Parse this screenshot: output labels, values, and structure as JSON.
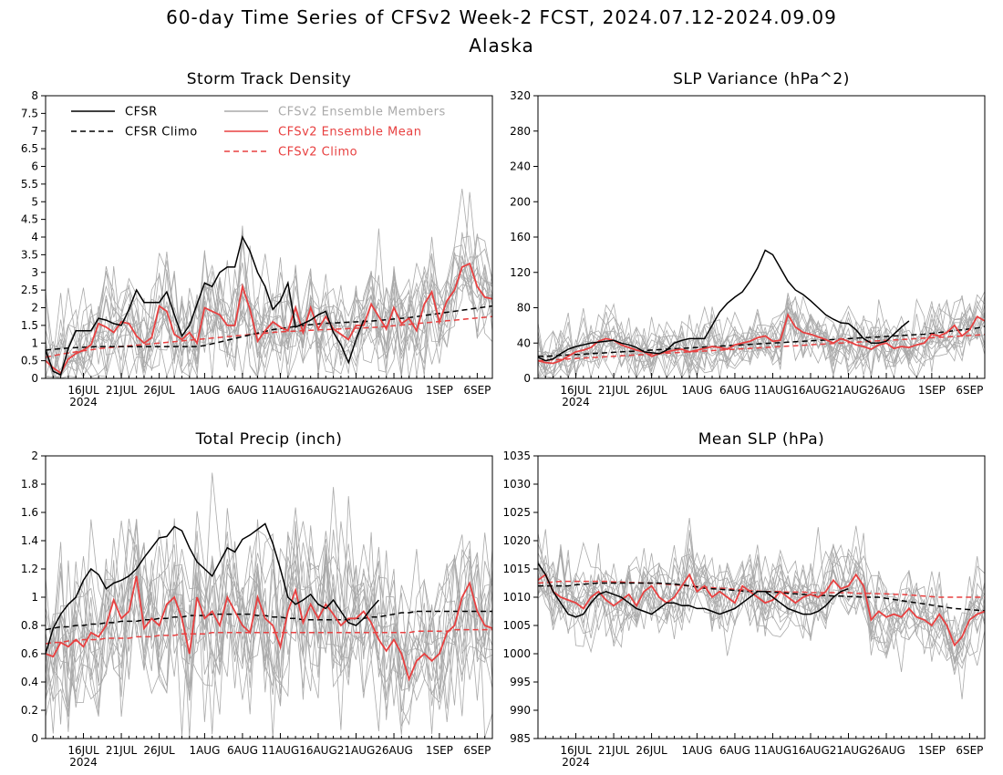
{
  "page": {
    "title_line1": "60-day Time Series of CFSv2 Week-2 FCST, 2024.07.12-2024.09.09",
    "title_line2": "Alaska"
  },
  "colors": {
    "cfsr": "#000000",
    "ens_members": "#aaaaaa",
    "ens_mean": "#e84040",
    "cfsv2_climo": "#e84040",
    "legend_members_text": "#aaaaaa",
    "legend_red_text": "#e84040"
  },
  "legend": {
    "cfsr": "CFSR",
    "cfsr_climo": "CFSR Climo",
    "members": "CFSv2 Ensemble Members",
    "mean": "CFSv2 Ensemble Mean",
    "cfsv2_climo": "CFSv2 Climo"
  },
  "x_axis": {
    "day_count": 60,
    "tick_days": [
      5,
      10,
      15,
      21,
      26,
      31,
      36,
      41,
      46,
      52,
      57
    ],
    "tick_labels": [
      "16JUL",
      "21JUL",
      "26JUL",
      "1AUG",
      "6AUG",
      "11AUG",
      "16AUG",
      "21AUG",
      "26AUG",
      "1SEP",
      "6SEP"
    ],
    "year_label": "2024"
  },
  "chart_data": [
    {
      "type": "line",
      "title": "Storm Track Density",
      "ylim": [
        0,
        8
      ],
      "yticks": [
        "0",
        "0.5",
        "1",
        "1.5",
        "2",
        "2.5",
        "3",
        "3.5",
        "4",
        "4.5",
        "5",
        "5.5",
        "6",
        "6.5",
        "7",
        "7.5",
        "8"
      ],
      "legend": true,
      "cfsr": [
        0.8,
        0.2,
        0.1,
        0.85,
        1.35,
        1.35,
        1.35,
        1.7,
        1.65,
        1.55,
        1.5,
        1.95,
        2.5,
        2.15,
        2.15,
        2.15,
        2.45,
        1.8,
        1.2,
        1.5,
        2.1,
        2.7,
        2.6,
        3,
        3.15,
        3.15,
        4,
        3.6,
        3,
        2.6,
        1.95,
        2.2,
        2.7,
        1.45,
        1.55,
        1.65,
        1.8,
        1.9,
        1.3,
        0.95,
        0.45,
        1.1,
        1.65,
        null,
        null,
        null,
        null,
        null,
        null,
        null,
        null,
        null,
        null,
        null,
        null,
        null,
        null,
        null,
        null,
        null
      ],
      "cfsr_climo": [
        0.8,
        0.82,
        0.84,
        0.86,
        0.87,
        0.88,
        0.89,
        0.9,
        0.9,
        0.9,
        0.9,
        0.9,
        0.9,
        0.9,
        0.9,
        0.9,
        0.9,
        0.9,
        0.9,
        0.9,
        0.9,
        0.93,
        0.98,
        1.03,
        1.08,
        1.13,
        1.18,
        1.23,
        1.28,
        1.33,
        1.38,
        1.41,
        1.44,
        1.47,
        1.5,
        1.52,
        1.54,
        1.56,
        1.57,
        1.58,
        1.59,
        1.6,
        1.61,
        1.62,
        1.64,
        1.66,
        1.68,
        1.7,
        1.72,
        1.75,
        1.78,
        1.81,
        1.84,
        1.87,
        1.9,
        1.93,
        1.96,
        1.99,
        2.02,
        2.05
      ],
      "ens_mean": [
        0.5,
        0.3,
        0.15,
        0.55,
        0.7,
        0.8,
        0.95,
        1.55,
        1.45,
        1.3,
        1.6,
        1.55,
        1.2,
        1.0,
        1.15,
        2.05,
        1.9,
        1.25,
        1.1,
        1.3,
        1.0,
        2.0,
        1.9,
        1.8,
        1.5,
        1.5,
        2.6,
        1.95,
        1.05,
        1.35,
        1.6,
        1.45,
        1.35,
        2.0,
        1.3,
        2.0,
        1.4,
        1.75,
        1.4,
        1.25,
        1.1,
        1.5,
        1.5,
        2.1,
        1.75,
        1.4,
        2.0,
        1.55,
        1.7,
        1.35,
        2.1,
        2.45,
        1.6,
        2.2,
        2.5,
        3.15,
        3.25,
        2.6,
        2.3,
        2.25
      ],
      "cfsv2_climo": [
        0.6,
        0.64,
        0.68,
        0.72,
        0.75,
        0.78,
        0.81,
        0.84,
        0.86,
        0.88,
        0.9,
        0.92,
        0.94,
        0.96,
        0.98,
        1.0,
        1.02,
        1.04,
        1.06,
        1.08,
        1.1,
        1.12,
        1.14,
        1.16,
        1.18,
        1.2,
        1.22,
        1.24,
        1.26,
        1.28,
        1.3,
        1.32,
        1.33,
        1.34,
        1.35,
        1.36,
        1.37,
        1.38,
        1.39,
        1.4,
        1.41,
        1.42,
        1.43,
        1.44,
        1.45,
        1.47,
        1.49,
        1.51,
        1.53,
        1.55,
        1.57,
        1.59,
        1.61,
        1.63,
        1.65,
        1.67,
        1.69,
        1.71,
        1.73,
        1.75
      ],
      "members_spread": 0.8,
      "member_count": 16
    },
    {
      "type": "line",
      "title": "SLP Variance (hPa^2)",
      "ylim": [
        0,
        320
      ],
      "yticks": [
        "0",
        "40",
        "80",
        "120",
        "160",
        "200",
        "240",
        "280",
        "320"
      ],
      "legend": false,
      "cfsr": [
        24,
        20,
        22,
        28,
        33,
        36,
        38,
        40,
        41,
        42,
        43,
        40,
        38,
        35,
        30,
        29,
        28,
        32,
        40,
        43,
        45,
        45,
        45,
        60,
        75,
        85,
        92,
        98,
        110,
        125,
        145,
        140,
        125,
        110,
        100,
        95,
        88,
        80,
        72,
        67,
        63,
        62,
        55,
        45,
        40,
        40,
        42,
        50,
        58,
        65,
        null,
        null,
        null,
        null,
        null,
        null,
        null,
        null,
        null,
        null
      ],
      "cfsr_climo": [
        25,
        25,
        25.5,
        26,
        26.5,
        27,
        27.5,
        28,
        28.5,
        29,
        29.5,
        30,
        30.5,
        31,
        31.5,
        32,
        32.5,
        33,
        33.5,
        34,
        34.5,
        35,
        35.5,
        36,
        36.5,
        37,
        37.5,
        38,
        38.5,
        39,
        39.5,
        40,
        40.5,
        41,
        41.5,
        42,
        42.5,
        43,
        43.5,
        44,
        44.5,
        45,
        45.5,
        46,
        46.5,
        47,
        47.5,
        48,
        48.5,
        49,
        49.5,
        50,
        51,
        52,
        53,
        54,
        55,
        56,
        57,
        59
      ],
      "ens_mean": [
        20,
        18,
        17,
        20,
        25,
        30,
        32,
        35,
        42,
        45,
        43,
        38,
        35,
        32,
        30,
        25,
        28,
        30,
        32,
        33,
        30,
        32,
        34,
        36,
        35,
        33,
        38,
        40,
        42,
        46,
        48,
        42,
        43,
        72,
        58,
        52,
        50,
        47,
        44,
        40,
        45,
        42,
        38,
        36,
        33,
        38,
        40,
        34,
        36,
        35,
        38,
        40,
        50,
        48,
        52,
        60,
        48,
        55,
        70,
        65
      ],
      "cfsv2_climo": [
        20,
        20.5,
        21,
        21.5,
        22,
        22.5,
        23,
        23.5,
        24,
        24.5,
        25,
        25.5,
        26,
        26.5,
        27,
        27.5,
        28,
        28.5,
        29,
        29.5,
        30,
        30.5,
        31,
        31.5,
        32,
        32.5,
        33,
        33.5,
        34,
        34.5,
        35,
        35.5,
        36,
        36.5,
        37,
        37.5,
        38,
        38.5,
        39,
        39.5,
        40,
        40.5,
        41,
        41.5,
        42,
        42.5,
        43,
        43.5,
        44,
        44.5,
        45,
        45.5,
        46,
        46.5,
        47,
        47.5,
        48,
        48.5,
        49,
        50
      ],
      "members_spread": 18,
      "member_count": 16
    },
    {
      "type": "line",
      "title": "Total Precip (inch)",
      "ylim": [
        0,
        2
      ],
      "yticks": [
        "0",
        "0.2",
        "0.4",
        "0.6",
        "0.8",
        "1",
        "1.2",
        "1.4",
        "1.6",
        "1.8",
        "2"
      ],
      "legend": false,
      "cfsr": [
        0.6,
        0.78,
        0.88,
        0.95,
        1.0,
        1.12,
        1.2,
        1.16,
        1.06,
        1.1,
        1.12,
        1.15,
        1.2,
        1.28,
        1.35,
        1.42,
        1.43,
        1.5,
        1.47,
        1.35,
        1.25,
        1.2,
        1.15,
        1.25,
        1.35,
        1.32,
        1.41,
        1.44,
        1.48,
        1.52,
        1.38,
        1.2,
        1.0,
        0.95,
        0.98,
        1.02,
        0.95,
        0.92,
        0.98,
        0.9,
        0.82,
        0.8,
        0.85,
        0.92,
        0.98,
        null,
        null,
        null,
        null,
        null,
        null,
        null,
        null,
        null,
        null,
        null,
        null,
        null,
        null,
        null
      ],
      "cfsr_climo": [
        0.77,
        0.78,
        0.79,
        0.79,
        0.8,
        0.8,
        0.81,
        0.81,
        0.82,
        0.82,
        0.83,
        0.83,
        0.83,
        0.84,
        0.84,
        0.85,
        0.85,
        0.86,
        0.86,
        0.87,
        0.87,
        0.87,
        0.88,
        0.88,
        0.88,
        0.88,
        0.88,
        0.88,
        0.87,
        0.87,
        0.86,
        0.86,
        0.85,
        0.85,
        0.84,
        0.84,
        0.84,
        0.84,
        0.84,
        0.84,
        0.84,
        0.85,
        0.85,
        0.86,
        0.86,
        0.87,
        0.88,
        0.89,
        0.89,
        0.9,
        0.9,
        0.9,
        0.9,
        0.9,
        0.9,
        0.9,
        0.9,
        0.9,
        0.9,
        0.9
      ],
      "ens_mean": [
        0.6,
        0.58,
        0.68,
        0.65,
        0.7,
        0.65,
        0.75,
        0.72,
        0.8,
        0.98,
        0.85,
        0.9,
        1.15,
        0.78,
        0.85,
        0.8,
        0.95,
        1.0,
        0.85,
        0.6,
        1.0,
        0.85,
        0.9,
        0.8,
        1.0,
        0.9,
        0.8,
        0.75,
        1.0,
        0.85,
        0.8,
        0.65,
        0.9,
        1.05,
        0.82,
        0.95,
        0.85,
        0.95,
        0.88,
        0.8,
        0.85,
        0.85,
        0.9,
        0.82,
        0.7,
        0.62,
        0.7,
        0.6,
        0.42,
        0.55,
        0.6,
        0.55,
        0.6,
        0.75,
        0.8,
        1.0,
        1.1,
        0.9,
        0.8,
        0.78
      ],
      "cfsv2_climo": [
        0.67,
        0.68,
        0.68,
        0.69,
        0.69,
        0.7,
        0.7,
        0.7,
        0.71,
        0.71,
        0.71,
        0.71,
        0.72,
        0.72,
        0.72,
        0.73,
        0.73,
        0.73,
        0.74,
        0.74,
        0.74,
        0.74,
        0.75,
        0.75,
        0.75,
        0.75,
        0.75,
        0.75,
        0.75,
        0.75,
        0.75,
        0.75,
        0.75,
        0.75,
        0.75,
        0.75,
        0.75,
        0.75,
        0.75,
        0.75,
        0.75,
        0.75,
        0.75,
        0.75,
        0.75,
        0.75,
        0.75,
        0.75,
        0.75,
        0.76,
        0.76,
        0.76,
        0.76,
        0.76,
        0.77,
        0.77,
        0.77,
        0.77,
        0.77,
        0.77
      ],
      "members_spread": 0.3,
      "member_count": 16
    },
    {
      "type": "line",
      "title": "Mean SLP (hPa)",
      "ylim": [
        985,
        1035
      ],
      "yticks": [
        "985",
        "990",
        "995",
        "1000",
        "1005",
        "1010",
        "1015",
        "1020",
        "1025",
        "1030",
        "1035"
      ],
      "legend": false,
      "cfsr": [
        1016,
        1014,
        1011,
        1009,
        1007,
        1006.5,
        1007,
        1009,
        1010.5,
        1011,
        1010.5,
        1010,
        1009,
        1008,
        1007.5,
        1007,
        1008,
        1009,
        1009,
        1008.5,
        1008.5,
        1008,
        1008,
        1007.5,
        1007,
        1007.5,
        1008,
        1009,
        1010,
        1011,
        1011,
        1010,
        1009,
        1008,
        1007.5,
        1007,
        1007,
        1007.5,
        1008.5,
        1010,
        1011,
        1011.5,
        null,
        null,
        null,
        null,
        null,
        null,
        null,
        null,
        null,
        null,
        null,
        null,
        null,
        null,
        null,
        null,
        null,
        null
      ],
      "cfsr_climo": [
        1012,
        1012,
        1012,
        1012,
        1012,
        1012.2,
        1012.3,
        1012.4,
        1012.5,
        1012.5,
        1012.5,
        1012.5,
        1012.5,
        1012.5,
        1012.5,
        1012.5,
        1012.5,
        1012.4,
        1012.3,
        1012.2,
        1012,
        1011.8,
        1011.6,
        1011.5,
        1011.4,
        1011.3,
        1011.2,
        1011.1,
        1011,
        1011,
        1011,
        1010.9,
        1010.8,
        1010.7,
        1010.6,
        1010.5,
        1010.4,
        1010.3,
        1010.3,
        1010.2,
        1010.2,
        1010.1,
        1010.1,
        1010,
        1010,
        1010,
        1009.8,
        1009.6,
        1009.4,
        1009.2,
        1009,
        1008.8,
        1008.6,
        1008.4,
        1008.2,
        1008,
        1007.9,
        1007.8,
        1007.7,
        1007.6
      ],
      "ens_mean": [
        1013,
        1014,
        1011,
        1010,
        1009.5,
        1009,
        1008,
        1010,
        1011,
        1009.5,
        1008.5,
        1009.5,
        1010.5,
        1008.5,
        1011,
        1012,
        1010,
        1009,
        1010,
        1012,
        1014,
        1011,
        1012,
        1010,
        1011,
        1010,
        1009,
        1012,
        1011,
        1010,
        1009,
        1009.5,
        1011,
        1010,
        1009,
        1010,
        1010.5,
        1010,
        1011,
        1013,
        1011.5,
        1012,
        1014,
        1012,
        1006,
        1007.5,
        1006.5,
        1007,
        1006.5,
        1008,
        1006.5,
        1006,
        1005,
        1007,
        1005,
        1001.5,
        1003,
        1006,
        1007,
        1007.5
      ],
      "cfsv2_climo": [
        1012.5,
        1012.6,
        1012.7,
        1012.8,
        1012.8,
        1012.8,
        1012.8,
        1012.8,
        1012.8,
        1012.8,
        1012.7,
        1012.7,
        1012.6,
        1012.6,
        1012.5,
        1012.5,
        1012.4,
        1012.3,
        1012.2,
        1012.1,
        1012,
        1011.9,
        1011.8,
        1011.7,
        1011.6,
        1011.5,
        1011.4,
        1011.3,
        1011.2,
        1011.1,
        1011,
        1011,
        1011,
        1010.9,
        1010.9,
        1010.9,
        1010.8,
        1010.8,
        1010.8,
        1010.8,
        1010.8,
        1010.8,
        1010.7,
        1010.7,
        1010.7,
        1010.6,
        1010.6,
        1010.5,
        1010.5,
        1010.4,
        1010.3,
        1010.2,
        1010.1,
        1010,
        1010,
        1010,
        1010,
        1010,
        1010,
        1010
      ],
      "members_spread": 3.5,
      "member_count": 16
    }
  ]
}
